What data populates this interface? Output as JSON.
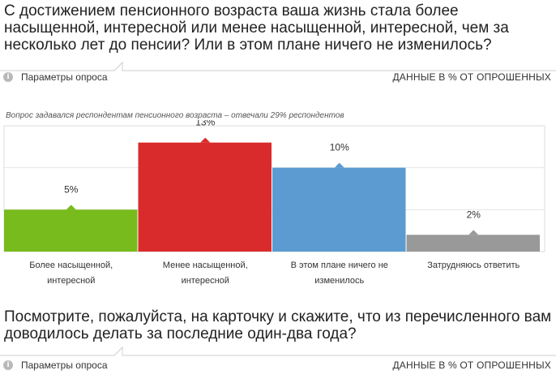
{
  "question1": {
    "title": "С достижением пенсионного возраста ваша жизнь стала более насыщенной, интересной или менее насыщенной, интересной, чем за несколько лет до пенсии? Или в этом плане ничего не изменилось?",
    "params_label": "Параметры опроса",
    "data_note": "ДАННЫЕ В % ОТ ОПРОШЕННЫХ",
    "subnote": "Вопрос задавался респондентам пенсионного возраста – отвечали 29% респондентов"
  },
  "question2": {
    "title": "Посмотрите, пожалуйста, на карточку и скажите, что из перечисленного вам доводилось делать за последние один-два года?",
    "params_label": "Параметры опроса",
    "data_note": "ДАННЫЕ В % ОТ ОПРОШЕННЫХ"
  },
  "icons": {
    "info": "info-icon"
  },
  "colors": {
    "green": "#77bb1c",
    "red": "#d92b2b",
    "blue": "#5b9bd1",
    "gray": "#999999"
  },
  "chart_data": {
    "type": "bar",
    "categories": [
      [
        "Более насыщенной,",
        "интересной"
      ],
      [
        "Менее насыщенной,",
        "интересной"
      ],
      [
        "В этом плане ничего не",
        "изменилось"
      ],
      [
        "Затрудняюсь ответить"
      ]
    ],
    "values": [
      5,
      13,
      10,
      2
    ],
    "value_labels": [
      "5%",
      "13%",
      "10%",
      "2%"
    ],
    "colors": [
      "#77bb1c",
      "#d92b2b",
      "#5b9bd1",
      "#999999"
    ],
    "ylim": [
      0,
      15
    ],
    "grid": true,
    "legend": "none"
  }
}
